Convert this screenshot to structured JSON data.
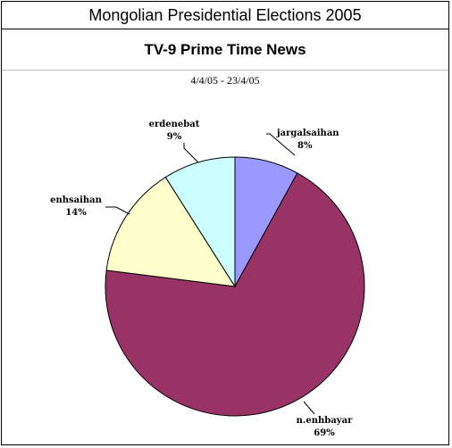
{
  "header": {
    "title": "Mongolian Presidential Elections 2005"
  },
  "chart_data": {
    "type": "pie",
    "title": "TV-9  Prime Time News",
    "subtitle": "4/4/05 - 23/4/05",
    "slices": [
      {
        "name": "jargalsaihan",
        "value": 8,
        "label": "8%",
        "color": "#9999ff"
      },
      {
        "name": "n.enhbayar",
        "value": 69,
        "label": "69%",
        "color": "#993366"
      },
      {
        "name": "enhsaihan",
        "value": 14,
        "label": "14%",
        "color": "#ffffcc"
      },
      {
        "name": "erdenebat",
        "value": 9,
        "label": "9%",
        "color": "#ccffff"
      }
    ]
  }
}
